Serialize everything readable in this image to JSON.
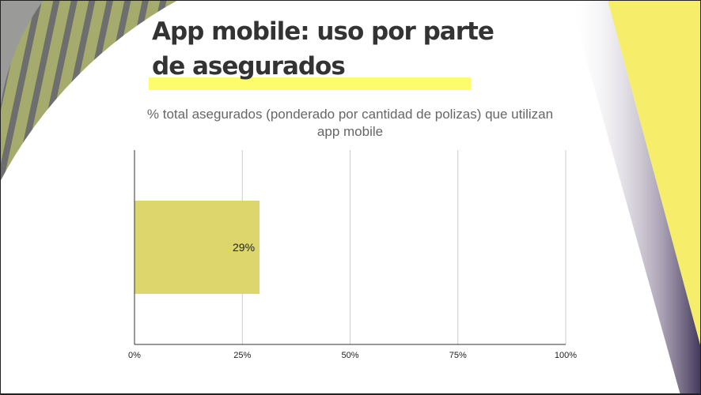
{
  "slide": {
    "title": "App mobile: uso por parte de asegurados"
  },
  "colors": {
    "bar": "#ddd66c",
    "highlight": "#fdfc6c",
    "accent_yellow": "#f6ee6a",
    "stripe_green": "#a5ab6c",
    "stripe_grey": "#6e6e6e"
  },
  "chart_data": {
    "type": "bar",
    "orientation": "horizontal",
    "title": "% total asegurados (ponderado por cantidad de polizas) que utilizan app mobile",
    "categories": [
      ""
    ],
    "values": [
      29
    ],
    "data_labels": [
      "29%"
    ],
    "xlim": [
      0,
      100
    ],
    "xticks": [
      0,
      25,
      50,
      75,
      100
    ],
    "xtick_labels": [
      "0%",
      "25%",
      "50%",
      "75%",
      "100%"
    ],
    "grid": true,
    "xlabel": "",
    "ylabel": ""
  }
}
